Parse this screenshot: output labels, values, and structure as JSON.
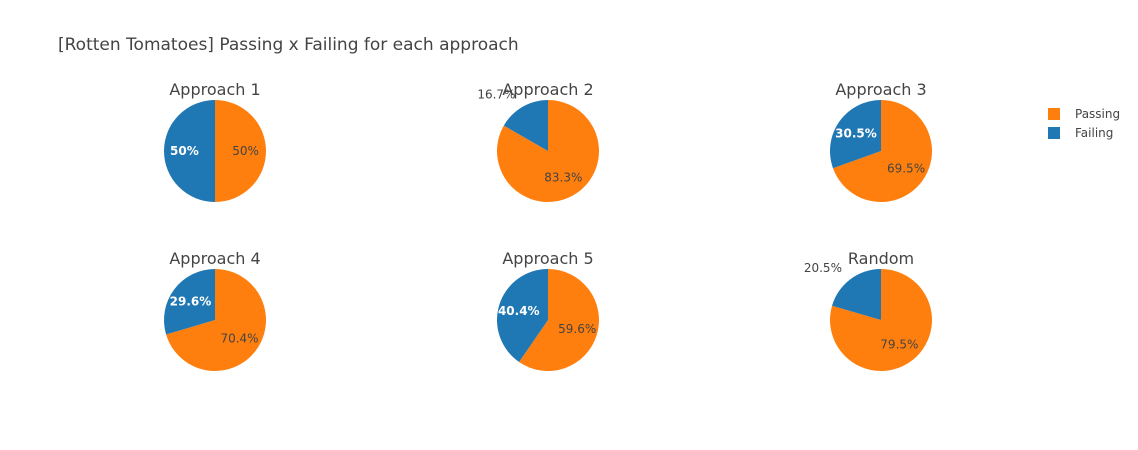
{
  "chart_data": {
    "type": "pie",
    "title": "[Rotten Tomatoes] Passing x Failing for each approach",
    "legend": {
      "placement": "top-right",
      "entries": [
        {
          "label": "Passing",
          "color": "#ff7f0e"
        },
        {
          "label": "Failing",
          "color": "#1f77b4"
        }
      ]
    },
    "charts": [
      {
        "title": "Approach 1",
        "slices": [
          {
            "label": "Passing",
            "value": 50,
            "text": "50%"
          },
          {
            "label": "Failing",
            "value": 50,
            "text": "50%"
          }
        ]
      },
      {
        "title": "Approach 2",
        "slices": [
          {
            "label": "Passing",
            "value": 83.3,
            "text": "83.3%"
          },
          {
            "label": "Failing",
            "value": 16.7,
            "text": "16.7%"
          }
        ]
      },
      {
        "title": "Approach 3",
        "slices": [
          {
            "label": "Passing",
            "value": 69.5,
            "text": "69.5%"
          },
          {
            "label": "Failing",
            "value": 30.5,
            "text": "30.5%"
          }
        ]
      },
      {
        "title": "Approach 4",
        "slices": [
          {
            "label": "Passing",
            "value": 70.4,
            "text": "70.4%"
          },
          {
            "label": "Failing",
            "value": 29.6,
            "text": "29.6%"
          }
        ]
      },
      {
        "title": "Approach 5",
        "slices": [
          {
            "label": "Passing",
            "value": 59.6,
            "text": "59.6%"
          },
          {
            "label": "Failing",
            "value": 40.4,
            "text": "40.4%"
          }
        ]
      },
      {
        "title": "Random",
        "slices": [
          {
            "label": "Passing",
            "value": 79.5,
            "text": "79.5%"
          },
          {
            "label": "Failing",
            "value": 20.5,
            "text": "20.5%"
          }
        ]
      }
    ]
  }
}
